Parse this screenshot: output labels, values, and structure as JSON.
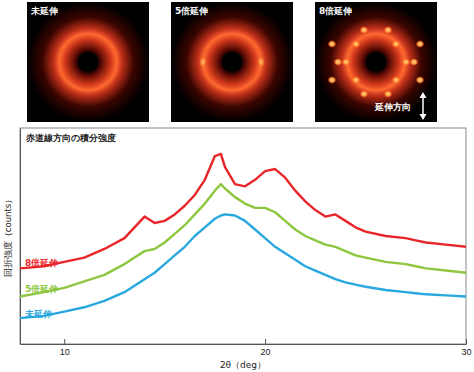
{
  "chart_data": {
    "type": "line",
    "title": "赤道線方向の積分強度",
    "x_label": "2θ（deg）",
    "y_label": "回折強度（counts）",
    "x": [
      7.8,
      9,
      10,
      11,
      12,
      13,
      13.5,
      14,
      14.5,
      15,
      15.5,
      16,
      16.5,
      17,
      17.5,
      17.8,
      18,
      18.5,
      19,
      19.5,
      20,
      20.5,
      21,
      21.5,
      22,
      22.5,
      23,
      23.5,
      24,
      24.5,
      25,
      26,
      27,
      27.5,
      28,
      29,
      30
    ],
    "series": [
      {
        "name": "8倍延伸",
        "color": "#e8262a",
        "values": [
          35,
          36,
          38,
          40,
          44,
          49,
          54,
          59,
          56,
          57,
          60,
          64,
          69,
          76,
          87,
          88,
          82,
          74,
          73,
          76,
          80,
          81,
          77,
          71,
          66,
          62,
          59,
          60,
          57,
          54,
          52,
          50,
          49,
          48,
          47,
          46,
          45
        ]
      },
      {
        "name": "5倍延伸",
        "color": "#8dc63f",
        "values": [
          22,
          24,
          26,
          29,
          32,
          37,
          40,
          43,
          44,
          47,
          51,
          55,
          60,
          65,
          71,
          74,
          72,
          68,
          65,
          63,
          63,
          61,
          57,
          53,
          50,
          48,
          46,
          45,
          43,
          41,
          40,
          38,
          37,
          36,
          35,
          34,
          33
        ]
      },
      {
        "name": "未延伸",
        "color": "#29a8e0",
        "values": [
          12,
          13,
          15,
          17,
          20,
          24,
          27,
          30,
          33,
          37,
          41,
          45,
          50,
          54,
          58,
          59.5,
          60,
          59.5,
          57,
          53,
          49,
          45,
          42,
          39,
          36,
          34,
          32,
          30,
          28.5,
          27.5,
          26.5,
          25,
          24,
          23.5,
          23,
          22.5,
          22
        ]
      }
    ],
    "xlim": [
      7.8,
      30
    ],
    "xticks": [
      10,
      20,
      30
    ],
    "ylim": [
      0,
      100
    ],
    "yticks": [],
    "tick_labels": "x",
    "legend": "left"
  },
  "images": {
    "labels": [
      "未延伸",
      "5倍延伸",
      "8倍延伸"
    ],
    "direction_label": "延伸方向"
  }
}
